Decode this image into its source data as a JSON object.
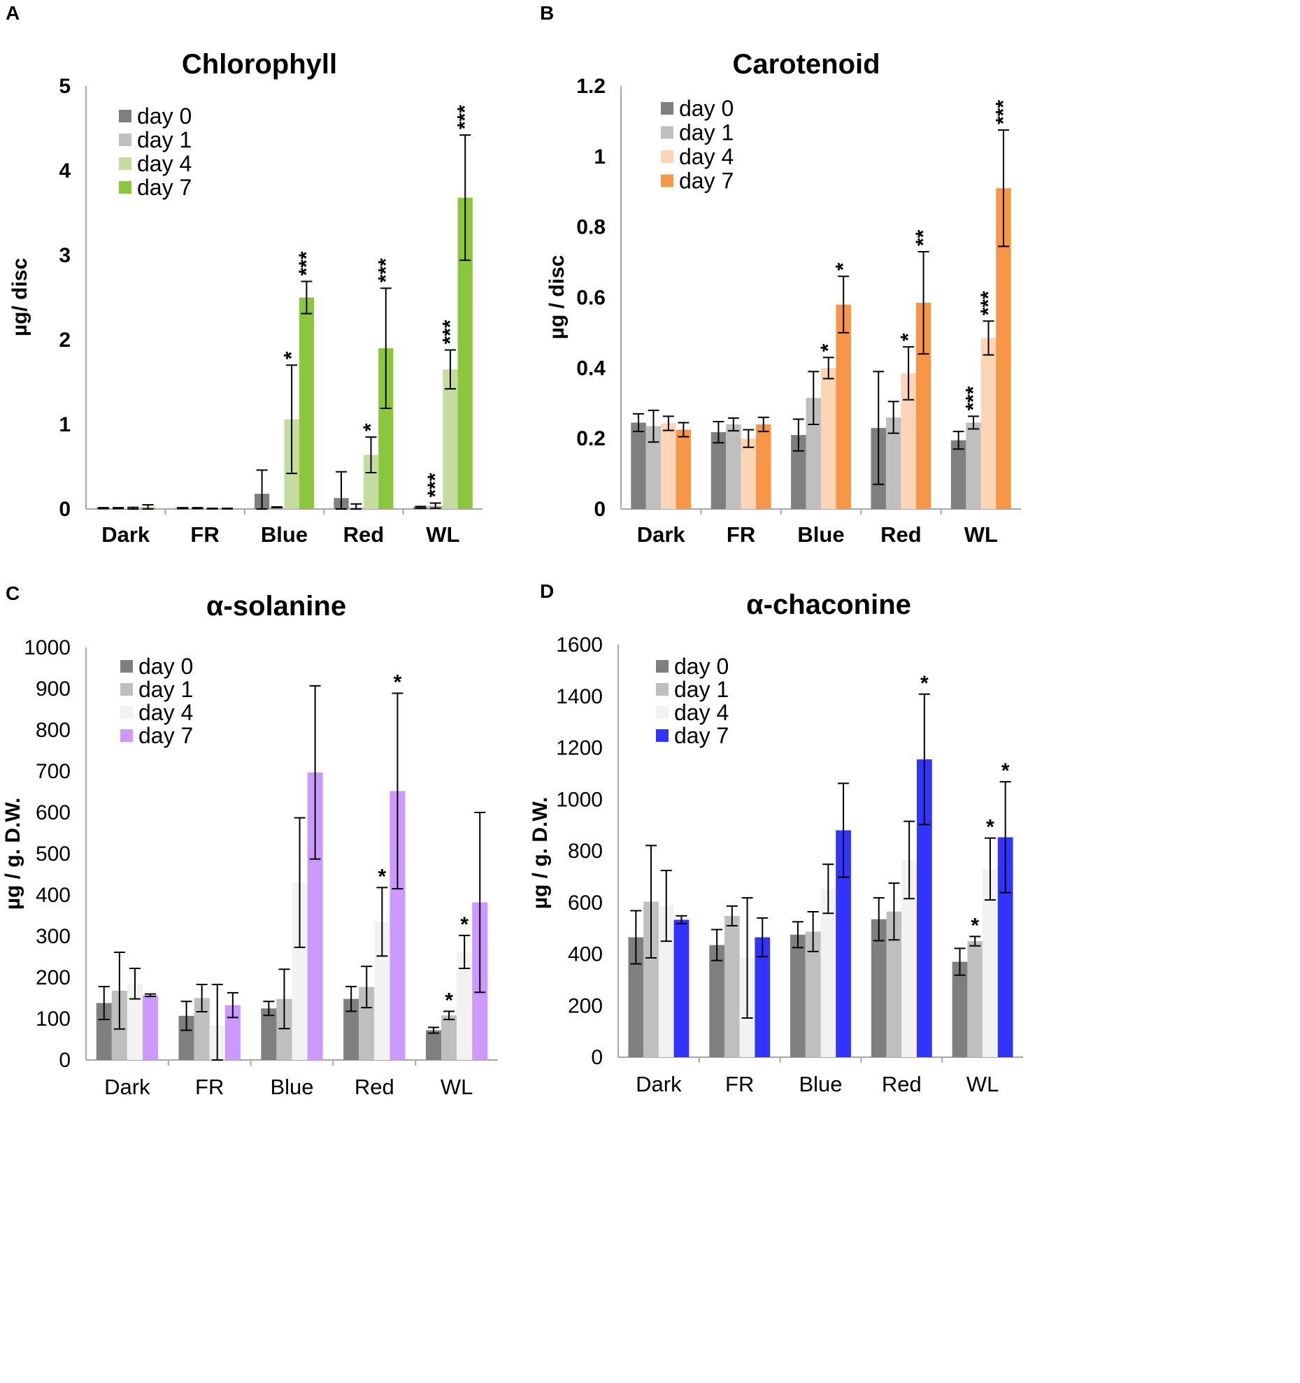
{
  "figure_labels": [
    "A",
    "B",
    "C",
    "D"
  ],
  "chart_data": [
    {
      "type": "bar",
      "panel": "A",
      "title": "Chlorophyll",
      "ylabel": "µg/ disc",
      "xlabel": "",
      "ylim": [
        0,
        5
      ],
      "yticks": [
        "0",
        "1",
        "2",
        "3",
        "4",
        "5"
      ],
      "ytick_values": [
        0,
        1,
        2,
        3,
        4,
        5
      ],
      "bold_ticks": true,
      "categories": [
        "Dark",
        "FR",
        "Blue",
        "Red",
        "WL"
      ],
      "legend_position": "top-left",
      "series": [
        {
          "name": "day 0",
          "color": "#7f7f7f",
          "values": [
            0.01,
            0.01,
            0.18,
            0.13,
            0.02
          ],
          "errors": [
            0.005,
            0.005,
            0.28,
            0.31,
            0.01
          ],
          "sig": [
            "",
            "",
            "",
            "",
            ""
          ]
        },
        {
          "name": "day 1",
          "color": "#bfbfbf",
          "values": [
            0.01,
            0.01,
            0.02,
            0.02,
            0.04
          ],
          "errors": [
            0.005,
            0.005,
            0.005,
            0.04,
            0.03
          ],
          "sig": [
            "",
            "",
            "",
            "",
            "***"
          ]
        },
        {
          "name": "day 4",
          "color": "#c5dca0",
          "values": [
            0.01,
            0.005,
            1.06,
            0.64,
            1.65
          ],
          "errors": [
            0.01,
            0.003,
            0.64,
            0.21,
            0.23
          ],
          "sig": [
            "",
            "",
            "*",
            "*",
            "***"
          ]
        },
        {
          "name": "day 7",
          "color": "#8cc63f",
          "values": [
            0.02,
            0.005,
            2.5,
            1.9,
            3.68
          ],
          "errors": [
            0.03,
            0.003,
            0.19,
            0.71,
            0.74
          ],
          "sig": [
            "",
            "",
            "***",
            "***",
            "***"
          ]
        }
      ]
    },
    {
      "type": "bar",
      "panel": "B",
      "title": "Carotenoid",
      "ylabel": "µg / disc",
      "xlabel": "",
      "ylim": [
        0,
        1.2
      ],
      "yticks": [
        "0",
        "0.2",
        "0.4",
        "0.6",
        "0.8",
        "1",
        "1.2"
      ],
      "ytick_values": [
        0,
        0.2,
        0.4,
        0.6,
        0.8,
        1.0,
        1.2
      ],
      "bold_ticks": true,
      "categories": [
        "Dark",
        "FR",
        "Blue",
        "Red",
        "WL"
      ],
      "legend_position": "top-left",
      "series": [
        {
          "name": "day 0",
          "color": "#7f7f7f",
          "values": [
            0.245,
            0.218,
            0.21,
            0.23,
            0.195
          ],
          "errors": [
            0.025,
            0.03,
            0.045,
            0.16,
            0.025
          ],
          "sig": [
            "",
            "",
            "",
            "",
            ""
          ]
        },
        {
          "name": "day 1",
          "color": "#bfbfbf",
          "values": [
            0.235,
            0.24,
            0.315,
            0.26,
            0.245
          ],
          "errors": [
            0.045,
            0.018,
            0.075,
            0.045,
            0.018
          ],
          "sig": [
            "",
            "",
            "",
            "",
            "***"
          ]
        },
        {
          "name": "day 4",
          "color": "#fbd5b5",
          "values": [
            0.243,
            0.2,
            0.4,
            0.385,
            0.485
          ],
          "errors": [
            0.02,
            0.025,
            0.03,
            0.075,
            0.048
          ],
          "sig": [
            "",
            "",
            "*",
            "*",
            "***"
          ]
        },
        {
          "name": "day 7",
          "color": "#f79646",
          "values": [
            0.225,
            0.24,
            0.58,
            0.585,
            0.91
          ],
          "errors": [
            0.02,
            0.02,
            0.08,
            0.145,
            0.165
          ],
          "sig": [
            "",
            "",
            "*",
            "**",
            "***"
          ]
        }
      ]
    },
    {
      "type": "bar",
      "panel": "C",
      "title": "α-solanine",
      "ylabel": "µg / g. D.W.",
      "xlabel": "",
      "ylim": [
        0,
        1000
      ],
      "yticks": [
        "0",
        "100",
        "200",
        "300",
        "400",
        "500",
        "600",
        "700",
        "800",
        "900",
        "1000"
      ],
      "ytick_values": [
        0,
        100,
        200,
        300,
        400,
        500,
        600,
        700,
        800,
        900,
        1000
      ],
      "bold_ticks": false,
      "categories": [
        "Dark",
        "FR",
        "Blue",
        "Red",
        "WL"
      ],
      "legend_position": "top-left",
      "series": [
        {
          "name": "day 0",
          "color": "#7f7f7f",
          "values": [
            138,
            107,
            125,
            148,
            72
          ],
          "errors": [
            40,
            35,
            17,
            30,
            7
          ],
          "sig": [
            "",
            "",
            "",
            "",
            ""
          ]
        },
        {
          "name": "day 1",
          "color": "#bfbfbf",
          "values": [
            168,
            150,
            148,
            177,
            108
          ],
          "errors": [
            93,
            33,
            72,
            50,
            10
          ],
          "sig": [
            "",
            "",
            "",
            "",
            "*"
          ]
        },
        {
          "name": "day 4",
          "color": "#f2f2f2",
          "values": [
            185,
            83,
            430,
            335,
            262
          ],
          "errors": [
            37,
            100,
            157,
            83,
            40
          ],
          "sig": [
            "",
            "",
            "",
            "*",
            "*"
          ]
        },
        {
          "name": "day 7",
          "color": "#cc99ff",
          "values": [
            157,
            133,
            697,
            652,
            382
          ],
          "errors": [
            3,
            30,
            210,
            237,
            218
          ],
          "sig": [
            "",
            "",
            "",
            "*",
            ""
          ]
        }
      ]
    },
    {
      "type": "bar",
      "panel": "D",
      "title": "α-chaconine",
      "ylabel": "µg / g. D.W.",
      "xlabel": "",
      "ylim": [
        0,
        1600
      ],
      "yticks": [
        "0",
        "200",
        "400",
        "600",
        "800",
        "1000",
        "1200",
        "1400",
        "1600"
      ],
      "ytick_values": [
        0,
        200,
        400,
        600,
        800,
        1000,
        1200,
        1400,
        1600
      ],
      "bold_ticks": false,
      "categories": [
        "Dark",
        "FR",
        "Blue",
        "Red",
        "WL"
      ],
      "legend_position": "top-left",
      "series": [
        {
          "name": "day 0",
          "color": "#7f7f7f",
          "values": [
            465,
            435,
            475,
            535,
            370
          ],
          "errors": [
            103,
            60,
            50,
            83,
            52
          ],
          "sig": [
            "",
            "",
            "",
            "",
            ""
          ]
        },
        {
          "name": "day 1",
          "color": "#bfbfbf",
          "values": [
            603,
            548,
            487,
            565,
            450
          ],
          "errors": [
            218,
            38,
            77,
            110,
            18
          ],
          "sig": [
            "",
            "",
            "",
            "",
            "*"
          ]
        },
        {
          "name": "day 4",
          "color": "#f2f2f2",
          "values": [
            587,
            385,
            653,
            765,
            730
          ],
          "errors": [
            137,
            233,
            95,
            150,
            120
          ],
          "sig": [
            "",
            "",
            "",
            "",
            "*"
          ]
        },
        {
          "name": "day 7",
          "color": "#3333ff",
          "values": [
            533,
            465,
            880,
            1155,
            853
          ],
          "errors": [
            15,
            75,
            182,
            253,
            215
          ],
          "sig": [
            "",
            "",
            "",
            "*",
            "*"
          ]
        }
      ]
    }
  ]
}
